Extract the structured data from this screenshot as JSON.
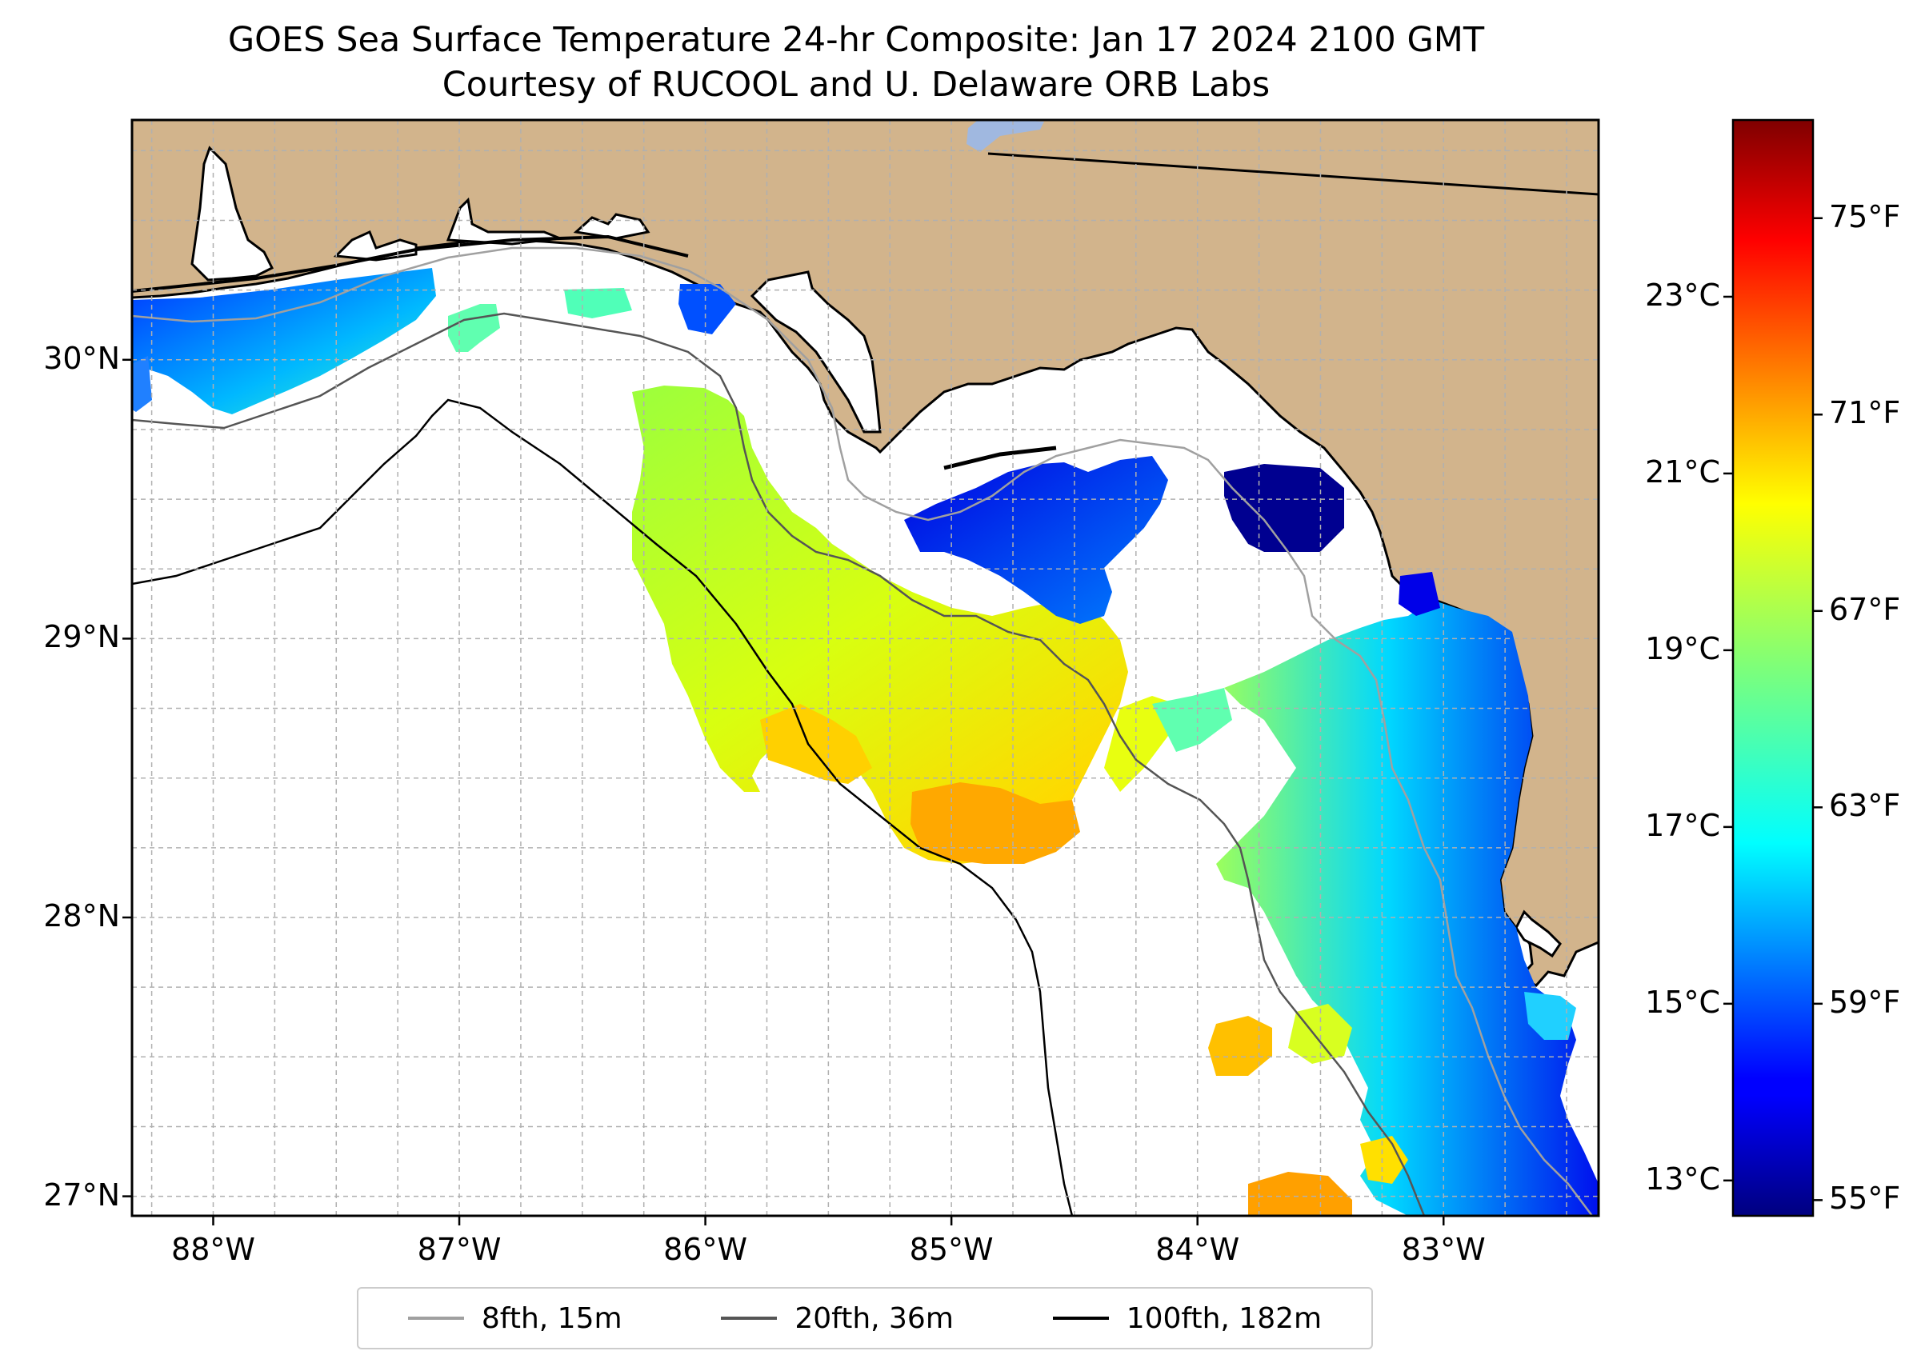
{
  "title": {
    "line1": "GOES Sea Surface Temperature 24-hr Composite: Jan 17 2024 2100 GMT",
    "line2": "Courtesy of RUCOOL and U. Delaware ORB Labs"
  },
  "map": {
    "lon_range": [
      -88.33,
      -82.37
    ],
    "lat_range": [
      26.93,
      30.86
    ],
    "land_color": "#d2b48c",
    "water_color": "#ffffff",
    "gridlines": true,
    "lon_ticks": [
      {
        "value": -88,
        "label": "88°W"
      },
      {
        "value": -87,
        "label": "87°W"
      },
      {
        "value": -86,
        "label": "86°W"
      },
      {
        "value": -85,
        "label": "85°W"
      },
      {
        "value": -84,
        "label": "84°W"
      },
      {
        "value": -83,
        "label": "83°W"
      }
    ],
    "lat_ticks": [
      {
        "value": 30,
        "label": "30°N"
      },
      {
        "value": 29,
        "label": "29°N"
      },
      {
        "value": 28,
        "label": "28°N"
      },
      {
        "value": 27,
        "label": "27°N"
      }
    ]
  },
  "colorbar": {
    "colormap": "jet",
    "celsius_ticks": [
      {
        "value": 23,
        "label": "23°C"
      },
      {
        "value": 21,
        "label": "21°C"
      },
      {
        "value": 19,
        "label": "19°C"
      },
      {
        "value": 17,
        "label": "17°C"
      },
      {
        "value": 15,
        "label": "15°C"
      },
      {
        "value": 13,
        "label": "13°C"
      }
    ],
    "fahrenheit_ticks": [
      {
        "value": 75,
        "label": "75°F"
      },
      {
        "value": 71,
        "label": "71°F"
      },
      {
        "value": 67,
        "label": "67°F"
      },
      {
        "value": 63,
        "label": "63°F"
      },
      {
        "value": 59,
        "label": "59°F"
      },
      {
        "value": 55,
        "label": "55°F"
      }
    ],
    "range_celsius": [
      12.6,
      25.0
    ]
  },
  "legend": {
    "items": [
      {
        "label": "8fth, 15m",
        "color": "#a0a0a0"
      },
      {
        "label": "20fth, 36m",
        "color": "#555555"
      },
      {
        "label": "100fth, 182m",
        "color": "#000000"
      }
    ]
  }
}
